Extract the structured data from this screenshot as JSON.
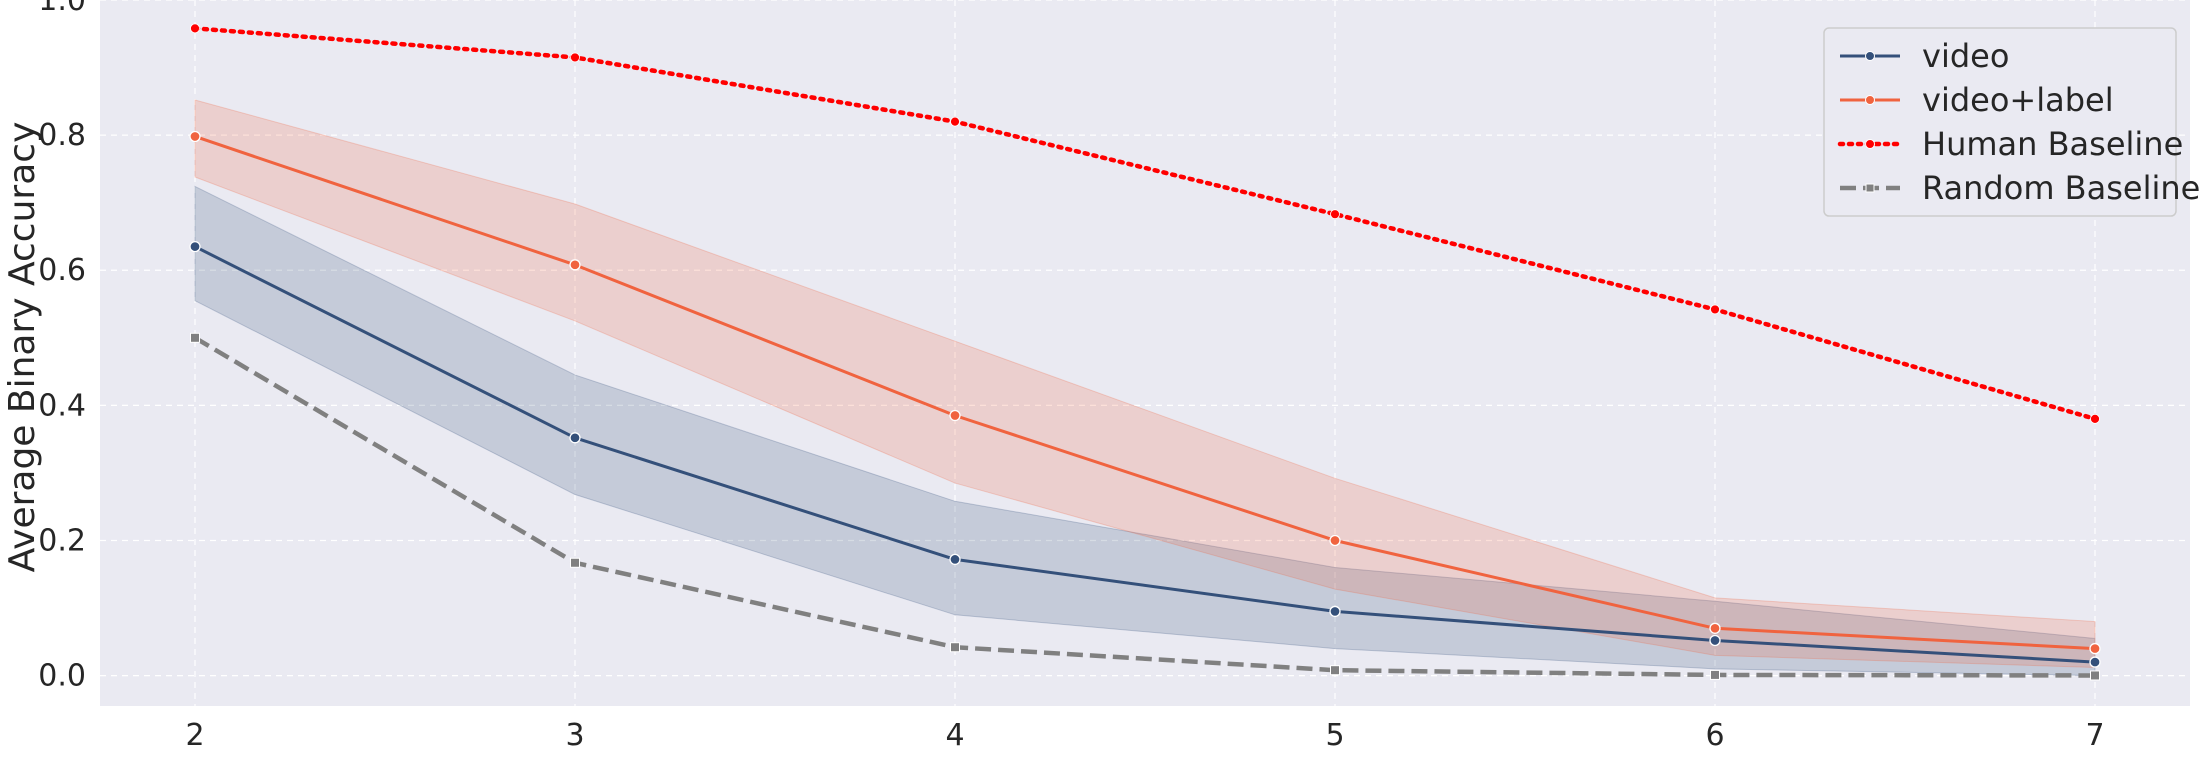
{
  "chart_data": {
    "type": "line",
    "title": "",
    "xlabel": "",
    "ylabel": "Average Binary Accuracy",
    "x": [
      2,
      3,
      4,
      5,
      6,
      7
    ],
    "xlim": [
      1.75,
      7.25
    ],
    "ylim": [
      -0.045,
      1.0
    ],
    "xticks": [
      2,
      3,
      4,
      5,
      6,
      7
    ],
    "yticks": [
      0.0,
      0.2,
      0.4,
      0.6,
      0.8,
      1.0
    ],
    "ytick_labels": [
      "0.0",
      "0.2",
      "0.4",
      "0.6",
      "0.8",
      "1.0"
    ],
    "grid": true,
    "legend_position": "top-right",
    "series": [
      {
        "name": "video",
        "color": "#34507a",
        "style": "solid",
        "marker": "circle",
        "values": [
          0.635,
          0.352,
          0.172,
          0.095,
          0.052,
          0.02
        ],
        "ci_lower": [
          0.555,
          0.268,
          0.09,
          0.04,
          0.01,
          0.0
        ],
        "ci_upper": [
          0.724,
          0.445,
          0.258,
          0.16,
          0.11,
          0.055
        ]
      },
      {
        "name": "video+label",
        "color": "#f0633f",
        "style": "solid",
        "marker": "circle",
        "values": [
          0.798,
          0.608,
          0.385,
          0.2,
          0.07,
          0.04
        ],
        "ci_lower": [
          0.738,
          0.525,
          0.285,
          0.128,
          0.03,
          0.012
        ],
        "ci_upper": [
          0.852,
          0.698,
          0.495,
          0.292,
          0.115,
          0.08
        ]
      },
      {
        "name": "Human Baseline",
        "color": "#ff0000",
        "style": "dotted",
        "marker": "circle",
        "values": [
          0.958,
          0.915,
          0.82,
          0.683,
          0.542,
          0.38
        ]
      },
      {
        "name": "Random Baseline",
        "color": "#808080",
        "style": "dashed",
        "marker": "square",
        "values": [
          0.5,
          0.167,
          0.042,
          0.008,
          0.001,
          0.0002
        ]
      }
    ]
  }
}
